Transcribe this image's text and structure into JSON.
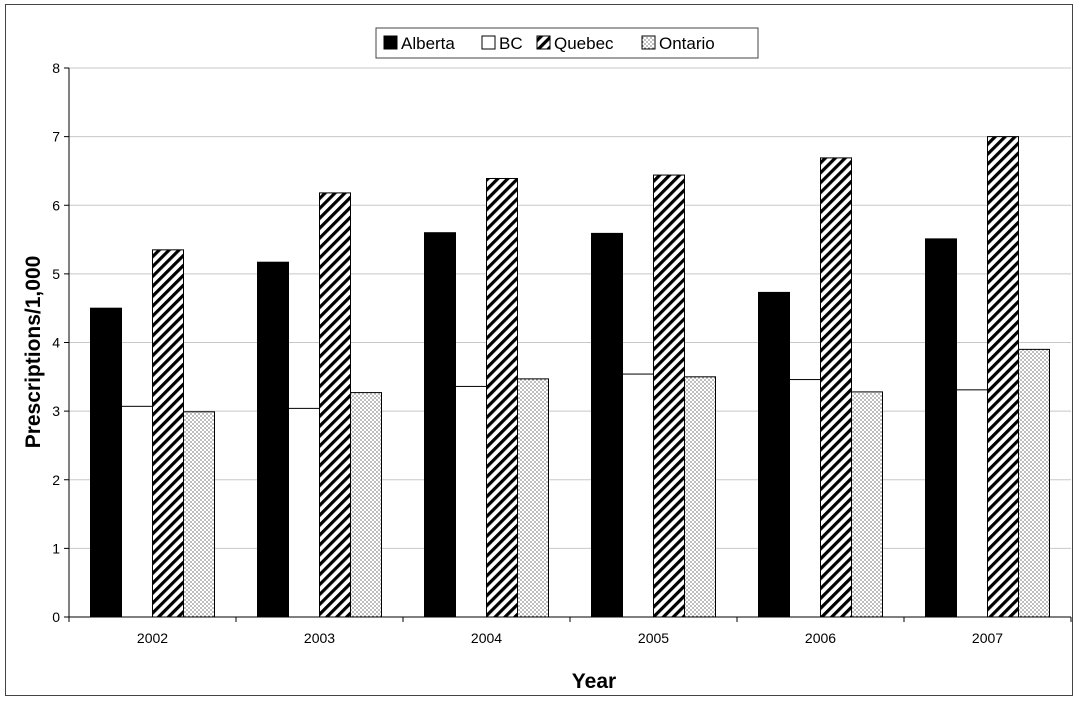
{
  "chart_data": {
    "type": "bar",
    "categories": [
      "2002",
      "2003",
      "2004",
      "2005",
      "2006",
      "2007"
    ],
    "series": [
      {
        "name": "Alberta",
        "values": [
          4.5,
          5.17,
          5.6,
          5.59,
          4.73,
          5.51
        ],
        "fill": "solid-black"
      },
      {
        "name": "BC",
        "values": [
          3.07,
          3.04,
          3.36,
          3.54,
          3.46,
          3.31
        ],
        "fill": "white"
      },
      {
        "name": "Quebec",
        "values": [
          5.35,
          6.18,
          6.39,
          6.44,
          6.69,
          7.0
        ],
        "fill": "diagonal-hatch"
      },
      {
        "name": "Ontario",
        "values": [
          2.99,
          3.27,
          3.47,
          3.5,
          3.28,
          3.9
        ],
        "fill": "dotted"
      }
    ],
    "xlabel": "Year",
    "ylabel": "Prescriptions/1,000",
    "ylim": [
      0,
      8
    ],
    "yticks": [
      "0",
      "1",
      "2",
      "3",
      "4",
      "5",
      "6",
      "7",
      "8"
    ],
    "grid": true,
    "legend_position": "top-center"
  },
  "colors": {
    "grid": "#c8c8c8",
    "bar_outline": "#000000",
    "background": "#ffffff"
  }
}
